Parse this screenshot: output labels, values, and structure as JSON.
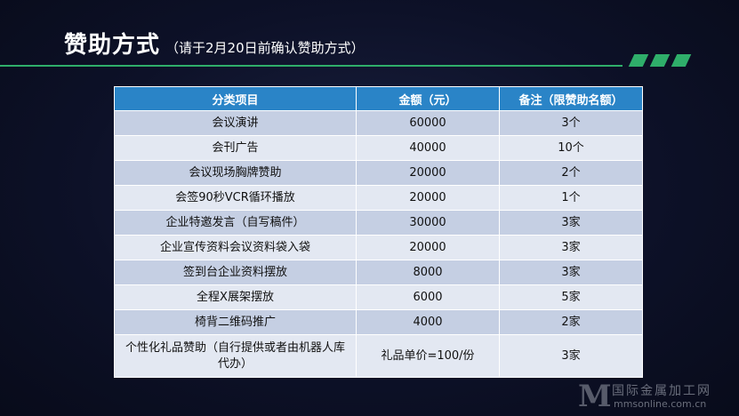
{
  "slide": {
    "title": "赞助方式",
    "subtitle": "（请于2月20日前确认赞助方式）"
  },
  "table": {
    "headers": [
      "分类项目",
      "金额（元）",
      "备注（限赞助名额）"
    ],
    "rows": [
      [
        "会议演讲",
        "60000",
        "3个"
      ],
      [
        "会刊广告",
        "40000",
        "10个"
      ],
      [
        "会议现场胸牌赞助",
        "20000",
        "2个"
      ],
      [
        "会签90秒VCR循环播放",
        "20000",
        "1个"
      ],
      [
        "企业特邀发言（自写稿件）",
        "30000",
        "3家"
      ],
      [
        "企业宣传资料会议资料袋入袋",
        "20000",
        "3家"
      ],
      [
        "签到台企业资料摆放",
        "8000",
        "3家"
      ],
      [
        "全程X展架摆放",
        "6000",
        "5家"
      ],
      [
        "椅背二维码推广",
        "4000",
        "2家"
      ],
      [
        "个性化礼品赞助（自行提供或者由机器人库代办）",
        "礼品单价=100/份",
        "3家"
      ]
    ]
  },
  "watermark": {
    "logo": "M",
    "cn": "国际金属加工网",
    "en": "mmsonline.com.cn"
  },
  "colors": {
    "accent_green": "#2fae6a",
    "header_blue": "#2a84c7",
    "row_dark": "#c5cfe3",
    "row_light": "#e3e8f2"
  }
}
